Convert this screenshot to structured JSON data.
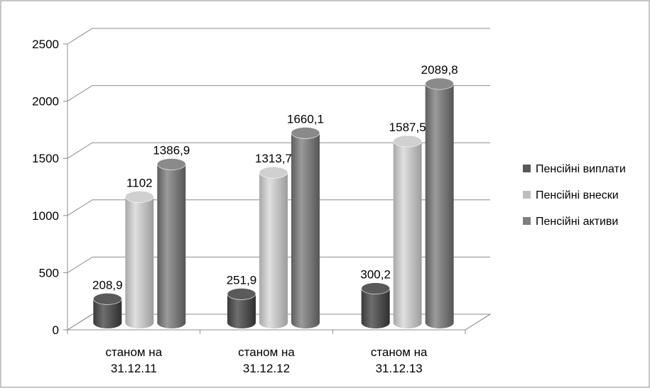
{
  "chart_data": {
    "type": "bar",
    "categories": [
      "станом на 31.12.11",
      "станом на 31.12.12",
      "станом на 31.12.13"
    ],
    "category_lines": [
      [
        "станом на",
        "31.12.11"
      ],
      [
        "станом на",
        "31.12.12"
      ],
      [
        "станом на",
        "31.12.13"
      ]
    ],
    "series": [
      {
        "name": "Пенсійні виплати",
        "values": [
          208.9,
          251.9,
          300.2
        ],
        "labels": [
          "208,9",
          "251,9",
          "300,2"
        ],
        "color": "#595959"
      },
      {
        "name": "Пенсійні внески",
        "values": [
          1102,
          1313.7,
          1587.5
        ],
        "labels": [
          "1102",
          "1313,7",
          "1587,5"
        ],
        "color": "#bfbfbf"
      },
      {
        "name": "Пенсійні активи",
        "values": [
          1386.9,
          1660.1,
          2089.8
        ],
        "labels": [
          "1386,9",
          "1660,1",
          "2089,8"
        ],
        "color": "#7f7f7f"
      }
    ],
    "y_ticks": [
      "0",
      "500",
      "1000",
      "1500",
      "2000",
      "2500"
    ],
    "ylim": [
      0,
      2500
    ],
    "grid": true,
    "legend_position": "right",
    "style": "3d-cylinder"
  }
}
